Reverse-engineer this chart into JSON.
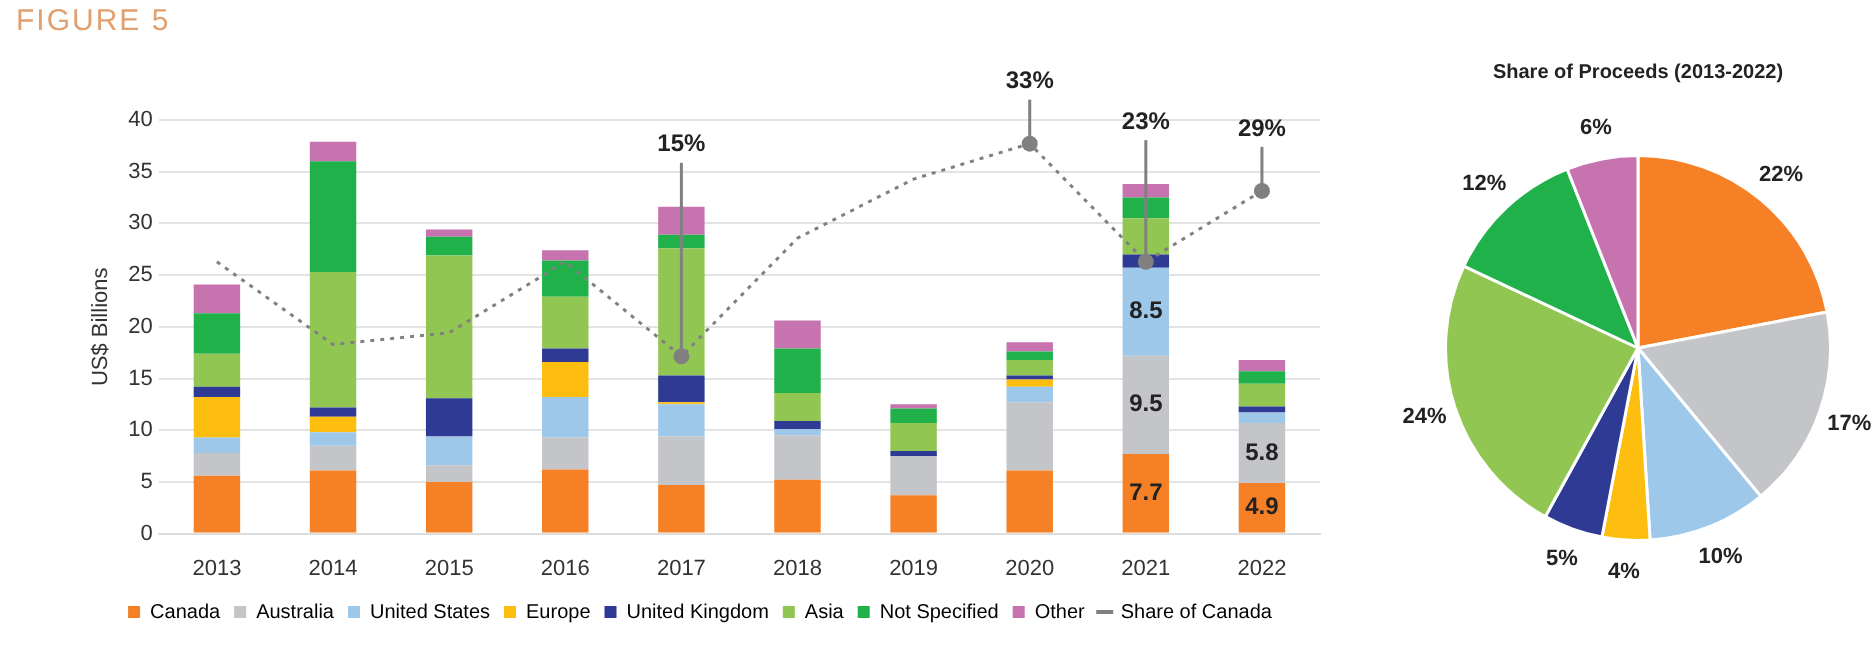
{
  "chart_data": [
    {
      "type": "bar",
      "title": "FIGURE 5",
      "ylabel": "US$ Billions",
      "stacked": true,
      "grid": "y",
      "legend": "bottom",
      "categories": [
        "2013",
        "2014",
        "2015",
        "2016",
        "2017",
        "2018",
        "2019",
        "2020",
        "2021",
        "2022"
      ],
      "ylim": [
        0,
        40
      ],
      "yticks": [
        0,
        5,
        10,
        15,
        20,
        25,
        30,
        35,
        40
      ],
      "y2lim": [
        0,
        35
      ],
      "series": [
        {
          "name": "Canada",
          "color": "#f58025",
          "values": [
            5.6,
            6.1,
            5.0,
            6.2,
            4.7,
            5.2,
            3.7,
            6.1,
            7.7,
            4.9
          ],
          "value_labels": [
            null,
            null,
            null,
            null,
            null,
            null,
            null,
            null,
            "7.7",
            "4.9"
          ]
        },
        {
          "name": "Australia",
          "color": "#c4c5c8",
          "values": [
            2.2,
            2.4,
            1.6,
            3.1,
            4.7,
            4.3,
            3.8,
            6.6,
            9.5,
            5.8
          ],
          "value_labels": [
            null,
            null,
            null,
            null,
            null,
            null,
            null,
            null,
            "9.5",
            "5.8"
          ]
        },
        {
          "name": "United States",
          "color": "#9dc8ea",
          "values": [
            1.5,
            1.3,
            2.8,
            3.9,
            3.1,
            0.6,
            0,
            1.5,
            8.5,
            1.0
          ],
          "value_labels": [
            null,
            null,
            null,
            null,
            null,
            null,
            null,
            null,
            "8.5",
            null
          ]
        },
        {
          "name": "Europe",
          "color": "#fdbe10",
          "values": [
            3.9,
            1.5,
            0,
            3.4,
            0.2,
            0,
            0,
            0.7,
            0,
            0
          ]
        },
        {
          "name": "United Kingdom",
          "color": "#2e3a94",
          "values": [
            1.0,
            0.9,
            3.7,
            1.3,
            2.6,
            0.8,
            0.5,
            0.4,
            1.3,
            0.6
          ]
        },
        {
          "name": "Asia",
          "color": "#92c653",
          "values": [
            3.2,
            13.1,
            13.8,
            5.0,
            12.3,
            2.7,
            2.7,
            1.5,
            3.5,
            2.2
          ]
        },
        {
          "name": "Not Specified",
          "color": "#21b14b",
          "values": [
            3.9,
            10.7,
            1.8,
            3.5,
            1.3,
            4.3,
            1.4,
            0.8,
            2.0,
            1.2
          ]
        },
        {
          "name": "Other",
          "color": "#c673b0",
          "values": [
            2.8,
            1.9,
            0.7,
            1.0,
            2.7,
            2.7,
            0.4,
            0.9,
            1.3,
            1.1
          ]
        },
        {
          "name": "Share of Canada",
          "type": "line",
          "axis": "y2",
          "color": "#808080",
          "line_style": "dotted",
          "values": [
            23,
            16,
            17,
            23,
            15,
            25,
            30,
            33,
            23,
            29
          ],
          "value_labels": [
            null,
            null,
            null,
            null,
            "15%",
            null,
            null,
            "33%",
            "23%",
            "29%"
          ]
        }
      ]
    },
    {
      "type": "pie",
      "title": "Share of Proceeds (2013-2022)",
      "legend": false,
      "data_labels": true,
      "categories": [
        null,
        null,
        null,
        null,
        null,
        null,
        null,
        null
      ],
      "values": [
        22,
        17,
        10,
        4,
        5,
        24,
        12,
        6
      ],
      "value_labels": [
        "22%",
        "17%",
        "10%",
        "4%",
        "5%",
        "24%",
        "12%",
        "6%"
      ],
      "colors": [
        "#f58025",
        "#c4c5c8",
        "#9dc8ea",
        "#fdbe10",
        "#2e3a94",
        "#92c653",
        "#21b14b",
        "#c673b0"
      ]
    }
  ]
}
